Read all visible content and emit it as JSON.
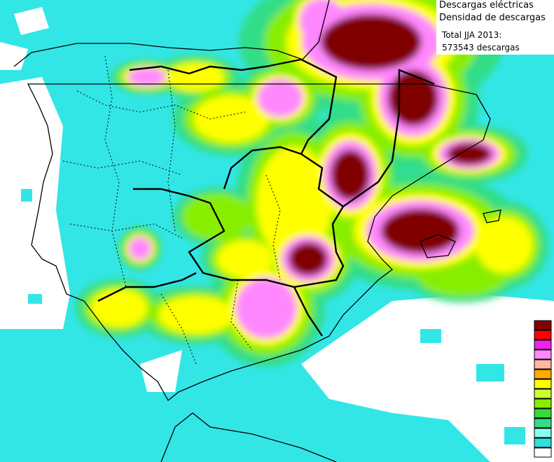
{
  "title": "Descargas eléctricas",
  "subtitle": "Densidad de descargas",
  "total_label": "Total JJA 2013:",
  "total_value": "573543 descargas"
}
